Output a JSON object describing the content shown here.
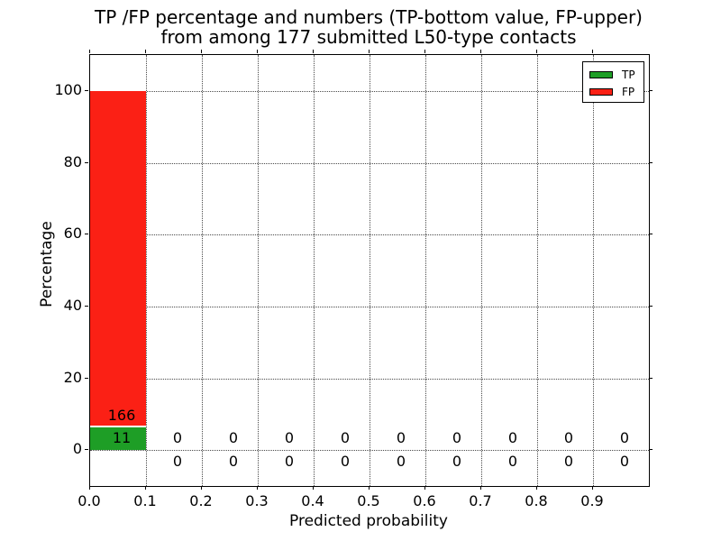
{
  "title": {
    "line1": "TP /FP percentage and numbers (TP-bottom value, FP-upper)",
    "line2": "from among 177 submitted L50-type contacts"
  },
  "axes": {
    "xlabel": "Predicted probability",
    "ylabel": "Percentage",
    "xtick_values": [
      0.0,
      0.1,
      0.2,
      0.3,
      0.4,
      0.5,
      0.6,
      0.7,
      0.8,
      0.9
    ],
    "xtick_labels": [
      "0.0",
      "0.1",
      "0.2",
      "0.3",
      "0.4",
      "0.5",
      "0.6",
      "0.7",
      "0.8",
      "0.9"
    ],
    "ytick_values": [
      0,
      20,
      40,
      60,
      80,
      100
    ],
    "ytick_labels": [
      "0",
      "20",
      "40",
      "60",
      "80",
      "100"
    ],
    "xlim": [
      0.0,
      1.0
    ],
    "ylim": [
      -10,
      110
    ],
    "grid_style": "dotted"
  },
  "legend": {
    "position": "upper right",
    "items": [
      {
        "label": "TP",
        "color": "#1e9e26"
      },
      {
        "label": "FP",
        "color": "#fb2015"
      }
    ]
  },
  "chart_data": {
    "type": "bar",
    "stacked": true,
    "title": "TP /FP percentage and numbers (TP-bottom value, FP-upper) from among 177 submitted L50-type contacts",
    "xlabel": "Predicted probability",
    "ylabel": "Percentage",
    "total_contacts": 177,
    "bin_width": 0.1,
    "bin_starts": [
      0.0,
      0.1,
      0.2,
      0.3,
      0.4,
      0.5,
      0.6,
      0.7,
      0.8,
      0.9
    ],
    "series": [
      {
        "name": "TP",
        "color": "#1e9e26",
        "counts": [
          11,
          0,
          0,
          0,
          0,
          0,
          0,
          0,
          0,
          0
        ],
        "percent": [
          6.215,
          0,
          0,
          0,
          0,
          0,
          0,
          0,
          0,
          0
        ]
      },
      {
        "name": "FP",
        "color": "#fb2015",
        "counts": [
          166,
          0,
          0,
          0,
          0,
          0,
          0,
          0,
          0,
          0
        ],
        "percent": [
          93.785,
          0,
          0,
          0,
          0,
          0,
          0,
          0,
          0,
          0
        ]
      }
    ],
    "ylim": [
      -10,
      110
    ],
    "xlim": [
      0.0,
      1.0
    ],
    "legend_position": "upper right",
    "grid": true
  },
  "colors": {
    "tp": "#1e9e26",
    "fp": "#fb2015",
    "grid": "#4a4a4a",
    "text": "#000000",
    "background": "#ffffff"
  }
}
